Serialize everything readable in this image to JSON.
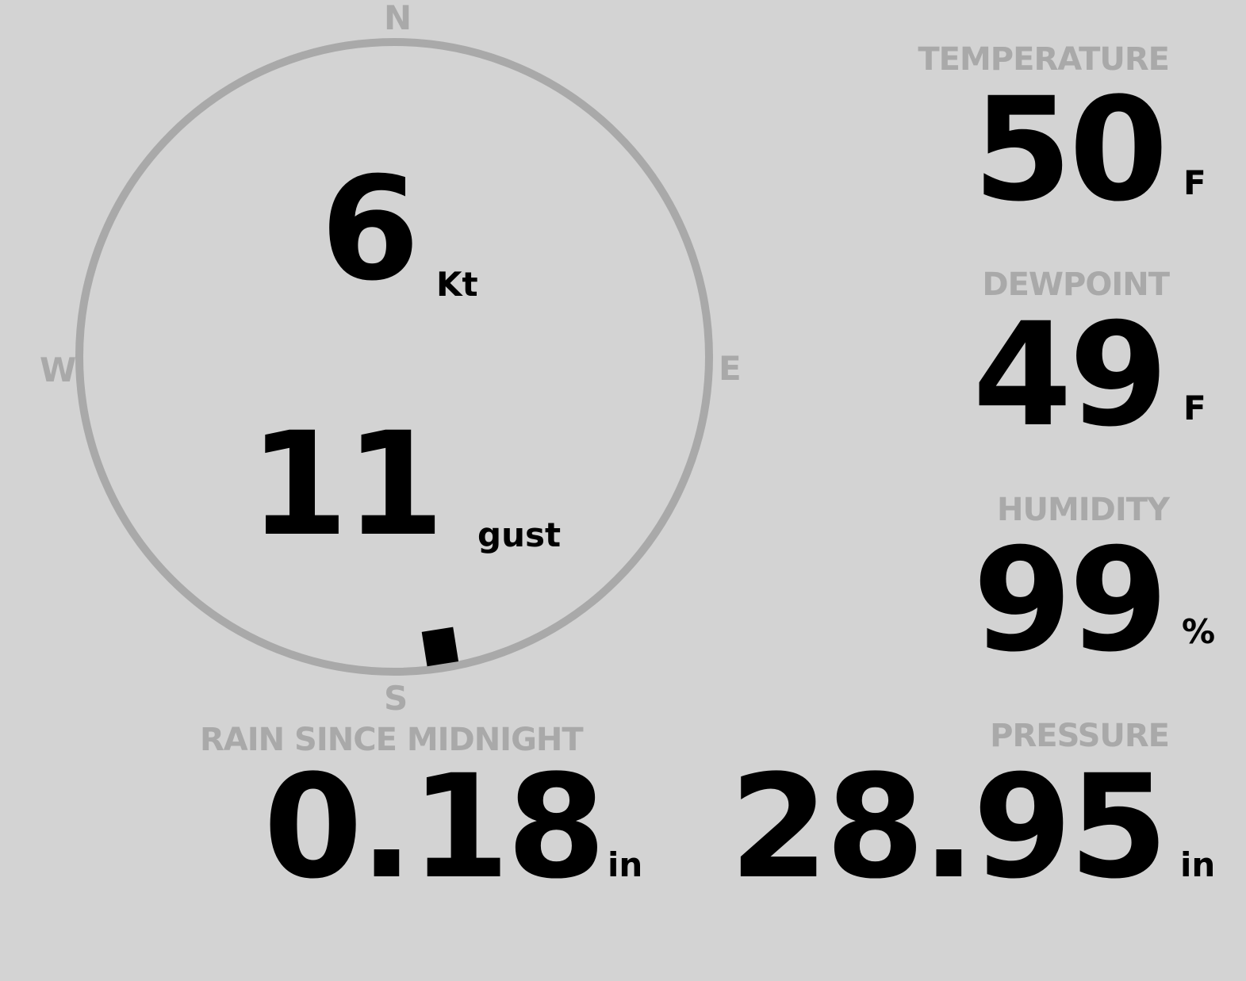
{
  "wind": {
    "speed": "6",
    "speed_unit": "Kt",
    "gust": "11",
    "gust_unit": "gust",
    "direction_deg": 171,
    "cardinals": {
      "n": "N",
      "e": "E",
      "s": "S",
      "w": "W"
    }
  },
  "temperature": {
    "label": "TEMPERATURE",
    "value": "50",
    "unit": "F"
  },
  "dewpoint": {
    "label": "DEWPOINT",
    "value": "49",
    "unit": "F"
  },
  "humidity": {
    "label": "HUMIDITY",
    "value": "99",
    "unit": "%"
  },
  "rain": {
    "label": "RAIN SINCE MIDNIGHT",
    "value": "0.18",
    "unit": "in"
  },
  "pressure": {
    "label": "PRESSURE",
    "value": "28.95",
    "unit": "in"
  },
  "colors": {
    "background": "#d3d3d3",
    "label": "#a9a9a9",
    "value": "#000000"
  }
}
